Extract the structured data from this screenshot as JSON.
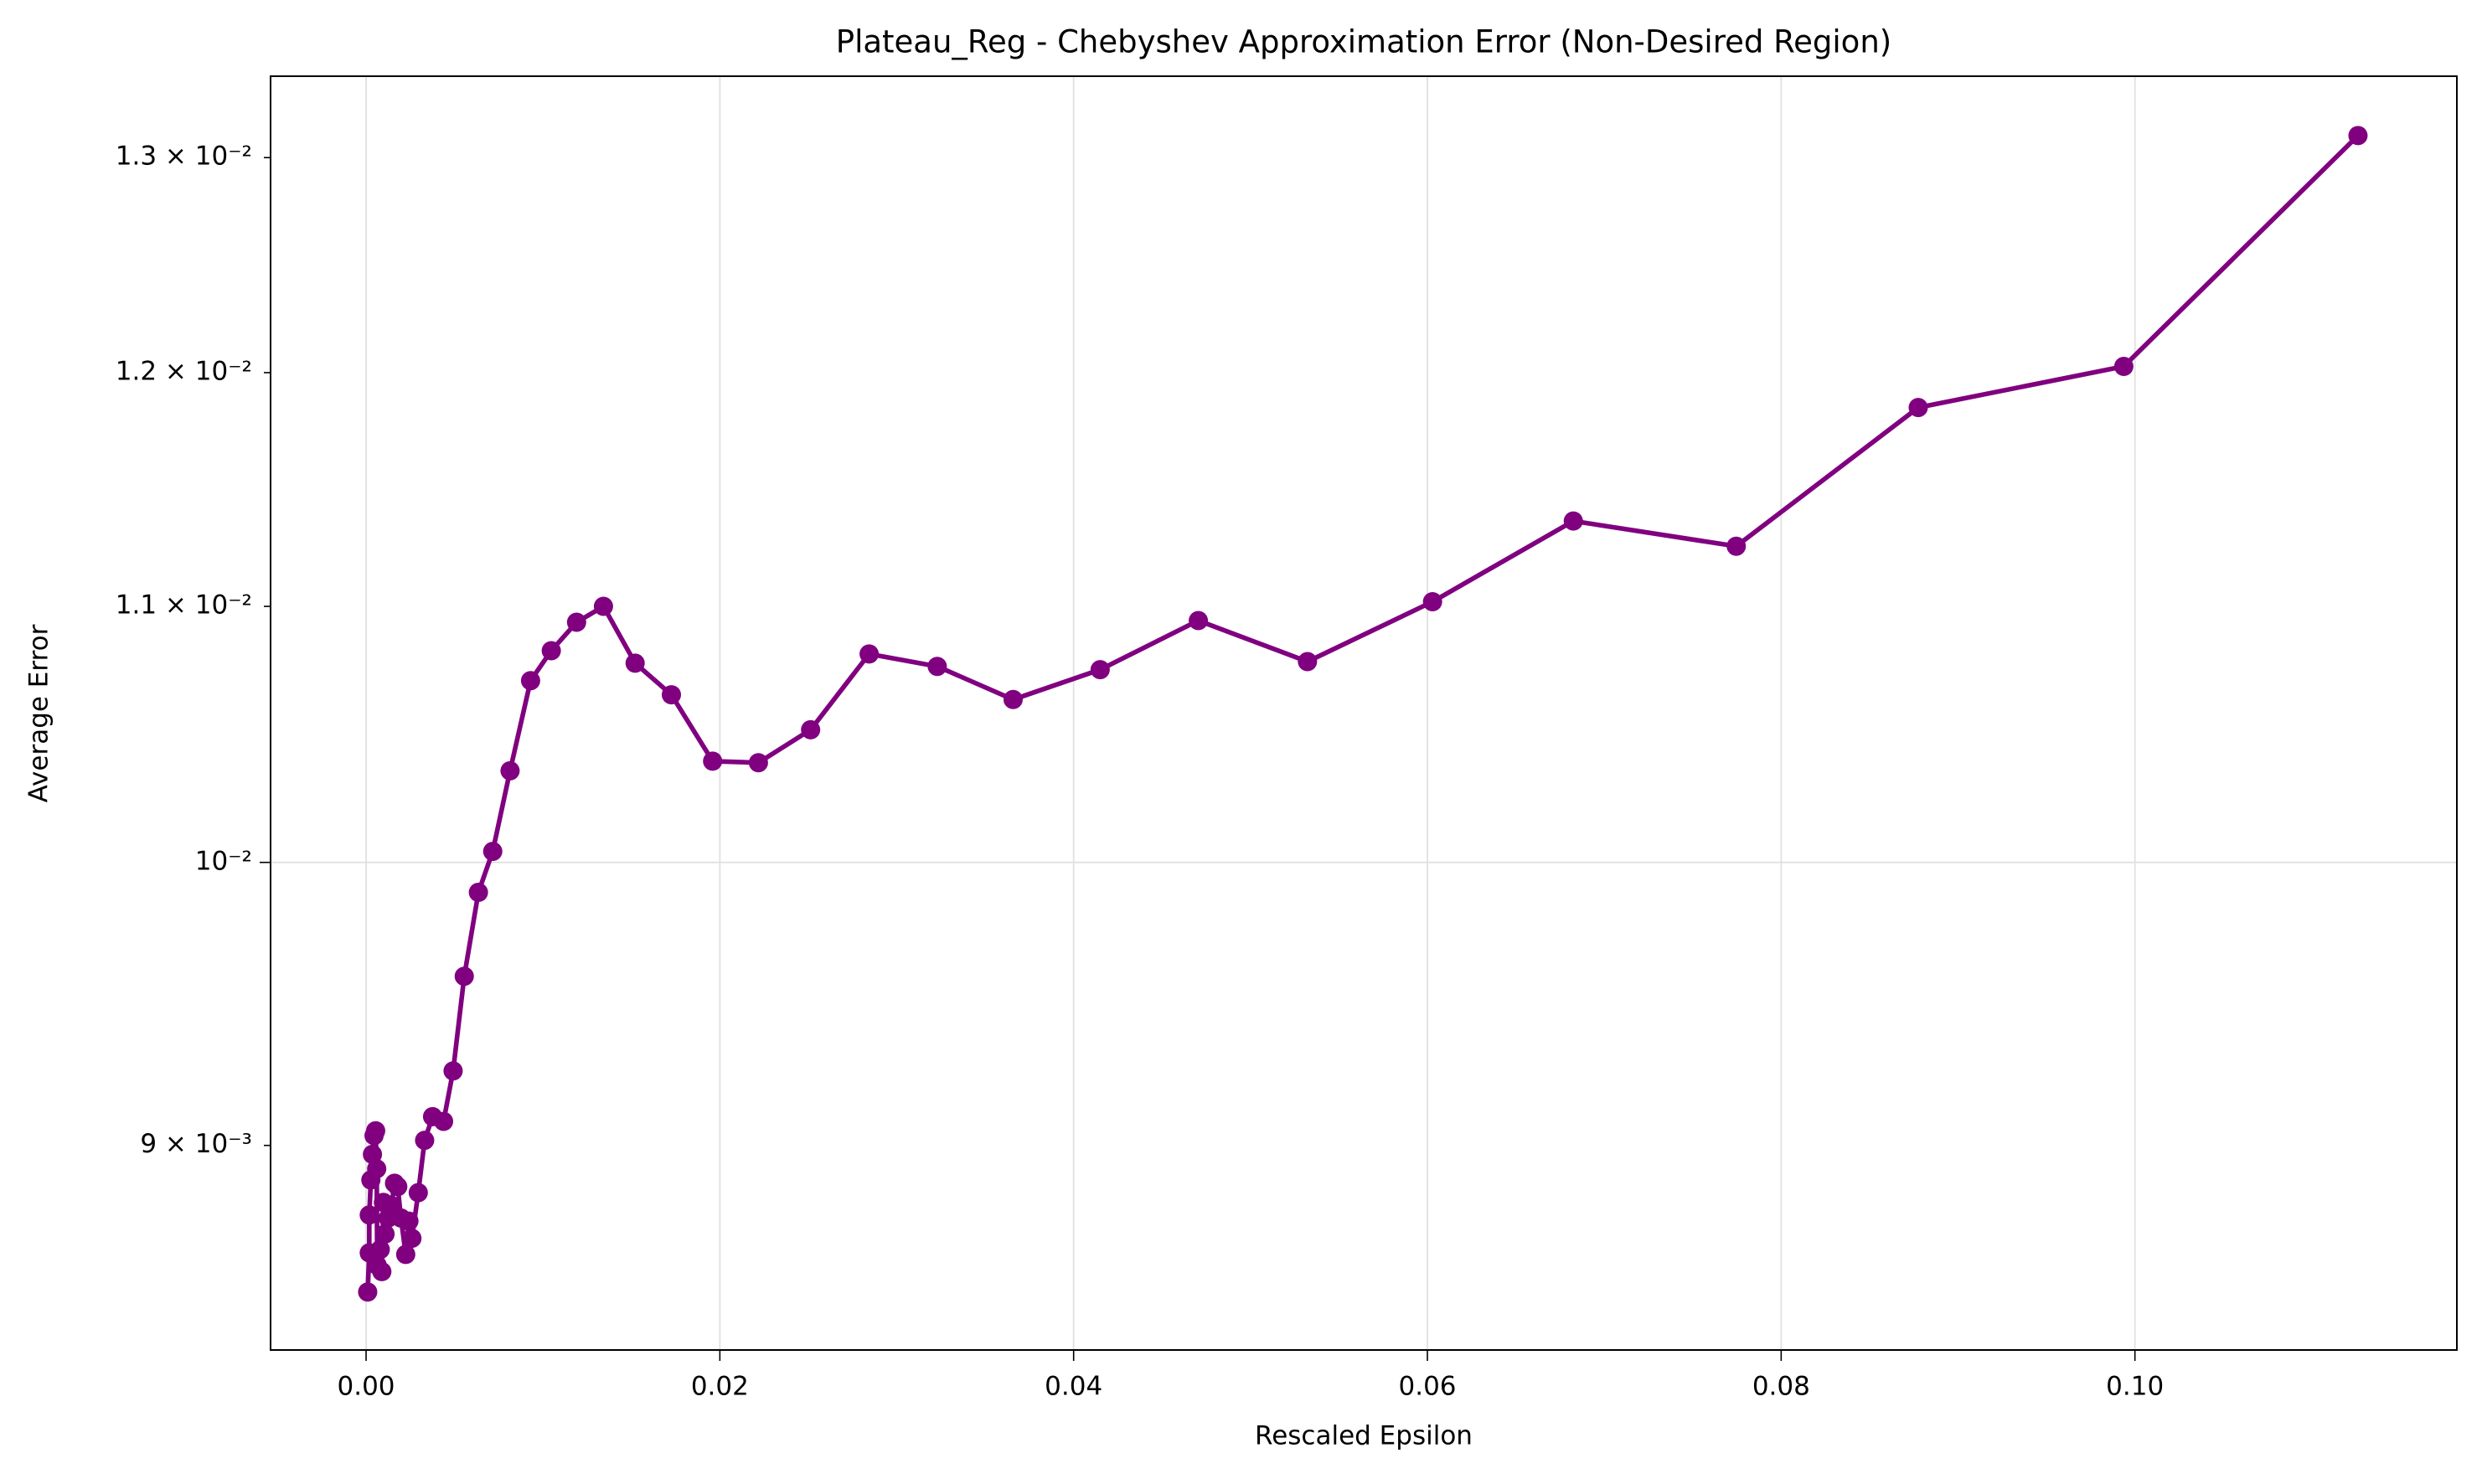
{
  "chart_data": {
    "type": "line",
    "title": "Plateau_Reg - Chebyshev Approximation Error (Non-Desired Region)",
    "xlabel": "Rescaled Epsilon",
    "ylabel": "Average Error",
    "color": "#800080",
    "marker": "circle",
    "yscale": "log",
    "grid": true,
    "x": [
      9e-05,
      0.00018,
      0.00018,
      0.00027,
      0.00036,
      0.00045,
      0.00054,
      0.0006,
      0.00063,
      0.0008,
      0.00089,
      0.00098,
      0.00107,
      0.00125,
      0.00143,
      0.00161,
      0.00179,
      0.00197,
      0.00224,
      0.00242,
      0.00259,
      0.00295,
      0.00331,
      0.00376,
      0.00438,
      0.00492,
      0.00555,
      0.00635,
      0.00716,
      0.00814,
      0.0093,
      0.01047,
      0.0119,
      0.01342,
      0.01521,
      0.01726,
      0.01959,
      0.02218,
      0.02513,
      0.02844,
      0.03229,
      0.03658,
      0.0415,
      0.04705,
      0.05322,
      0.06029,
      0.06825,
      0.07746,
      0.08775,
      0.09937,
      0.11261
    ],
    "values": [
      0.008522,
      0.008647,
      0.00877,
      0.008885,
      0.00897,
      0.009033,
      0.009049,
      0.008922,
      0.008607,
      0.008658,
      0.008587,
      0.008811,
      0.008708,
      0.00876,
      0.008801,
      0.008874,
      0.008863,
      0.00876,
      0.008642,
      0.00875,
      0.008694,
      0.008843,
      0.009017,
      0.009097,
      0.009081,
      0.009253,
      0.009585,
      0.009889,
      0.010041,
      0.010347,
      0.0107,
      0.01082,
      0.010935,
      0.011,
      0.01077,
      0.010644,
      0.010384,
      0.010378,
      0.010506,
      0.010807,
      0.010757,
      0.010625,
      0.010744,
      0.010942,
      0.010776,
      0.011019,
      0.011355,
      0.011249,
      0.011845,
      0.012028,
      0.013107
    ],
    "xlim": [
      -0.0054,
      0.1182
    ],
    "xticks": [
      {
        "value": 0,
        "label": "0.00"
      },
      {
        "value": 0.02,
        "label": "0.02"
      },
      {
        "value": 0.04,
        "label": "0.04"
      },
      {
        "value": 0.06,
        "label": "0.06"
      },
      {
        "value": 0.08,
        "label": "0.08"
      },
      {
        "value": 0.1,
        "label": "0.10"
      }
    ],
    "ylim": [
      0.00834,
      0.0134
    ],
    "yticks": [
      {
        "value": 0.01,
        "label": "10⁻²"
      }
    ],
    "yminorticks": [
      {
        "value": 0.009,
        "label": "9 × 10⁻³"
      },
      {
        "value": 0.011,
        "label": "1.1 × 10⁻²"
      },
      {
        "value": 0.012,
        "label": "1.2 × 10⁻²"
      },
      {
        "value": 0.013,
        "label": "1.3 × 10⁻²"
      }
    ]
  }
}
